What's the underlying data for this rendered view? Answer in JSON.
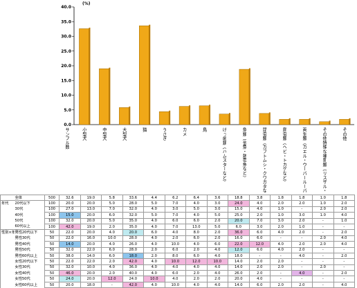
{
  "chart_data": {
    "type": "bar",
    "unit_label": "(%)",
    "ylim": [
      0,
      40
    ],
    "yticks": [
      "0.0",
      "5.0",
      "10.0",
      "15.0",
      "20.0",
      "25.0",
      "30.0",
      "35.0",
      "40.0"
    ],
    "categories": [
      "小型犬",
      "中型犬",
      "大型犬",
      "猫",
      "うさぎ",
      "カメ",
      "鳥",
      "げっ歯類（ハムスターなど）",
      "魚類（金魚・熱帯魚など）",
      "昆虫類（カブトムシ・クワガタなど）",
      "爬虫類（ヘビ・トカゲなど）",
      "両生類（カエル・ウーパールーパーなど）",
      "その他特殊な哺乳類（リスザル・ミンクなど）",
      "その他"
    ],
    "values": [
      32.6,
      19.0,
      5.8,
      33.6,
      4.4,
      6.2,
      6.4,
      3.6,
      18.8,
      3.8,
      1.8,
      1.8,
      1.0,
      1.8
    ],
    "bar_color": "#f0a818"
  },
  "table": {
    "sample_header": "サンプル数",
    "sections": [
      {
        "label": "",
        "rows": [
          {
            "label": "全体",
            "n": "500",
            "cells": [
              "32.6",
              "19.0",
              "5.8",
              "33.6",
              "4.4",
              "6.2",
              "6.4",
              "3.6",
              "18.8",
              "3.8",
              "1.8",
              "1.8",
              "1.0",
              "1.8"
            ]
          }
        ]
      },
      {
        "label": "年代",
        "rows": [
          {
            "label": "20代以下",
            "n": "100",
            "cells": [
              "20.0",
              "20.0",
              "5.0",
              "28.0",
              "5.0",
              "7.0",
              "4.0",
              "3.0",
              "24.0",
              "4.0",
              "2.0",
              "2.0",
              "1.0",
              "2.0"
            ]
          },
          {
            "label": "30代",
            "n": "100",
            "cells": [
              "27.0",
              "13.0",
              "7.0",
              "32.0",
              "4.0",
              "3.0",
              "5.0",
              "3.0",
              "15.0",
              "4.0",
              "1.0",
              "-",
              "2.0",
              "2.0"
            ]
          },
          {
            "label": "40代",
            "n": "100",
            "cells": [
              "15.0",
              "20.0",
              "6.0",
              "32.0",
              "5.0",
              "7.0",
              "4.0",
              "5.0",
              "25.0",
              "2.0",
              "1.0",
              "3.0",
              "1.0",
              "4.0"
            ]
          },
          {
            "label": "50代",
            "n": "100",
            "cells": [
              "32.0",
              "20.0",
              "5.0",
              "35.0",
              "4.0",
              "6.0",
              "6.0",
              "2.0",
              "20.0",
              "7.0",
              "3.0",
              "2.0",
              "-",
              "1.0"
            ]
          },
          {
            "label": "60代以上",
            "n": "100",
            "cells": [
              "42.0",
              "19.0",
              "2.0",
              "35.0",
              "4.0",
              "7.0",
              "13.0",
              "5.0",
              "6.0",
              "3.0",
              "2.0",
              "1.0",
              "-",
              "-"
            ]
          }
        ]
      },
      {
        "label": "性別×年代",
        "rows": [
          {
            "label": "男性20代以下",
            "n": "50",
            "cells": [
              "22.0",
              "20.0",
              "4.0",
              "20.0",
              "6.0",
              "4.0",
              "8.0",
              "2.0",
              "36.0",
              "6.0",
              "4.0",
              "2.0",
              "-",
              "2.0"
            ]
          },
          {
            "label": "男性30代",
            "n": "50",
            "cells": [
              "22.0",
              "16.0",
              "10.0",
              "28.0",
              "4.0",
              "2.0",
              "6.0",
              "2.0",
              "16.0",
              "6.0",
              "-",
              "-",
              "2.0",
              "4.0"
            ]
          },
          {
            "label": "男性40代",
            "n": "50",
            "cells": [
              "14.0",
              "20.0",
              "4.0",
              "26.0",
              "4.0",
              "10.0",
              "4.0",
              "6.0",
              "22.0",
              "12.0",
              "4.0",
              "2.0",
              "2.0",
              "4.0"
            ]
          },
          {
            "label": "男性50代",
            "n": "50",
            "cells": [
              "32.0",
              "22.0",
              "6.0",
              "28.0",
              "2.0",
              "6.0",
              "2.0",
              "4.0",
              "12.0",
              "6.0",
              "4.0",
              "2.0",
              "-",
              "-"
            ]
          },
          {
            "label": "男性60代以上",
            "n": "50",
            "cells": [
              "38.0",
              "14.0",
              "6.0",
              "18.0",
              "2.0",
              "8.0",
              "6.0",
              "4.0",
              "18.0",
              "-",
              "-",
              "4.0",
              "-",
              "2.0"
            ]
          },
          {
            "label": "女性20代以下",
            "n": "50",
            "cells": [
              "22.0",
              "22.0",
              "2.0",
              "42.0",
              "4.0",
              "10.0",
              "12.0",
              "10.0",
              "14.0",
              "2.0",
              "2.0",
              "-",
              "-",
              "-"
            ]
          },
          {
            "label": "女性30代",
            "n": "50",
            "cells": [
              "32.0",
              "10.0",
              "4.0",
              "36.0",
              "4.0",
              "4.0",
              "4.0",
              "4.0",
              "14.0",
              "2.0",
              "2.0",
              "-",
              "2.0",
              "-"
            ]
          },
          {
            "label": "女性40代",
            "n": "50",
            "cells": [
              "46.0",
              "20.0",
              "2.0",
              "40.0",
              "4.0",
              "6.0",
              "2.0",
              "4.0",
              "26.0",
              "2.0",
              "-",
              "4.0",
              "-",
              "2.0"
            ]
          },
          {
            "label": "女性50代",
            "n": "50",
            "cells": [
              "24.0",
              "20.0",
              "12.0",
              "24.0",
              "10.0",
              "4.0",
              "2.0",
              "2.0",
              "20.0",
              "4.0",
              "-",
              "-",
              "-",
              "-"
            ]
          },
          {
            "label": "女性60代以上",
            "n": "50",
            "cells": [
              "20.0",
              "18.0",
              "-",
              "42.0",
              "4.0",
              "10.0",
              "4.0",
              "4.0",
              "14.0",
              "6.0",
              "2.0",
              "2.0",
              "-",
              "4.0"
            ]
          }
        ]
      }
    ],
    "highlights": [
      {
        "sec": 1,
        "row": 2,
        "col": 0,
        "c": "hl-blue"
      },
      {
        "sec": 1,
        "row": 4,
        "col": 0,
        "c": "hl-pink"
      },
      {
        "sec": 1,
        "row": 3,
        "col": 8,
        "c": "hl-cyan"
      },
      {
        "sec": 1,
        "row": 0,
        "col": 8,
        "c": "hl-pink"
      },
      {
        "sec": 2,
        "row": 2,
        "col": 0,
        "c": "hl-blue"
      },
      {
        "sec": 2,
        "row": 7,
        "col": 0,
        "c": "hl-pink"
      },
      {
        "sec": 2,
        "row": 8,
        "col": 0,
        "c": "hl-cyan"
      },
      {
        "sec": 2,
        "row": 8,
        "col": 2,
        "c": "hl-pink"
      },
      {
        "sec": 2,
        "row": 0,
        "col": 8,
        "c": "hl-pink"
      },
      {
        "sec": 2,
        "row": 3,
        "col": 8,
        "c": "hl-cyan"
      },
      {
        "sec": 2,
        "row": 2,
        "col": 8,
        "c": "hl-pink"
      },
      {
        "sec": 2,
        "row": 0,
        "col": 3,
        "c": "hl-cyan"
      },
      {
        "sec": 2,
        "row": 4,
        "col": 3,
        "c": "hl-blue"
      },
      {
        "sec": 2,
        "row": 5,
        "col": 3,
        "c": "hl-pink"
      },
      {
        "sec": 2,
        "row": 9,
        "col": 3,
        "c": "hl-pink"
      },
      {
        "sec": 2,
        "row": 5,
        "col": 5,
        "c": "hl-pink"
      },
      {
        "sec": 2,
        "row": 8,
        "col": 4,
        "c": "hl-pink"
      },
      {
        "sec": 2,
        "row": 5,
        "col": 7,
        "c": "hl-pink"
      },
      {
        "sec": 2,
        "row": 7,
        "col": 11,
        "c": "hl-purple"
      },
      {
        "sec": 2,
        "row": 2,
        "col": 9,
        "c": "hl-pink"
      },
      {
        "sec": 2,
        "row": 5,
        "col": 6,
        "c": "hl-pink"
      }
    ]
  }
}
